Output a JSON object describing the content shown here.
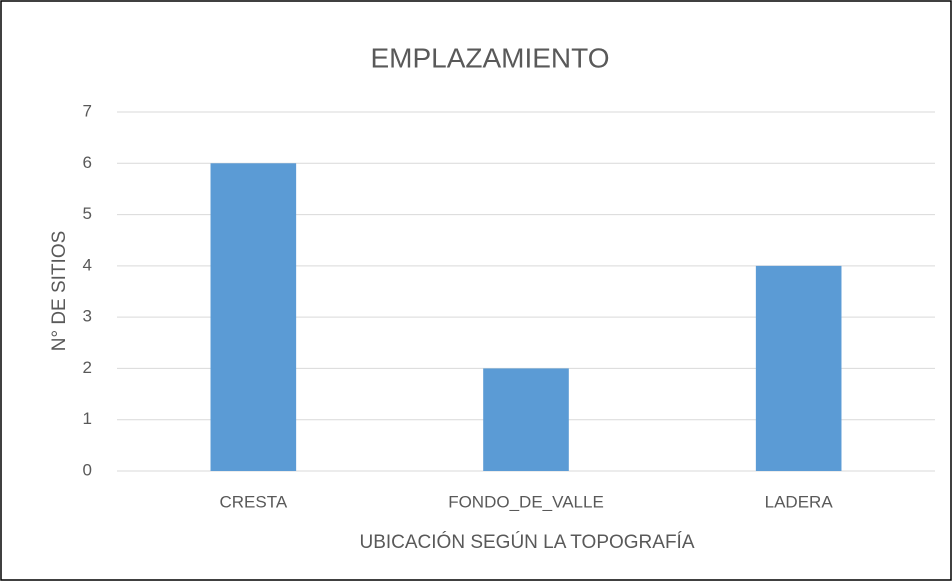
{
  "chart_data": {
    "type": "bar",
    "title": "EMPLAZAMIENTO",
    "x_label": "UBICACIÓN SEGÚN LA TOPOGRAFÍA",
    "y_label": "N° DE SITIOS",
    "categories": [
      "CRESTA",
      "FONDO_DE_VALLE",
      "LADERA"
    ],
    "values": [
      6,
      2,
      4
    ],
    "color": "#5b9bd5",
    "ylim": [
      0,
      7
    ],
    "yticks": [
      0,
      1,
      2,
      3,
      4,
      5,
      6,
      7
    ],
    "grid": true
  }
}
